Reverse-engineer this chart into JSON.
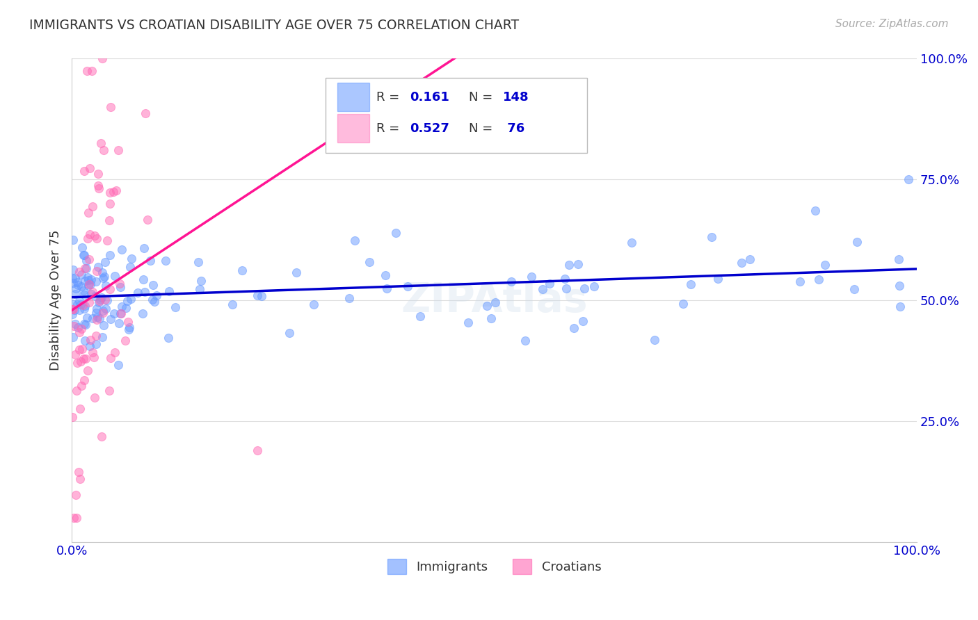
{
  "title": "IMMIGRANTS VS CROATIAN DISABILITY AGE OVER 75 CORRELATION CHART",
  "source": "Source: ZipAtlas.com",
  "ylabel": "Disability Age Over 75",
  "watermark": "ZIPAtlas",
  "legend_immigrants_R": "0.161",
  "legend_immigrants_N": "148",
  "legend_croatians_R": "0.527",
  "legend_croatians_N": "76",
  "immigrants_color": "#6699ff",
  "croatians_color": "#ff69b4",
  "trendline_immigrants_color": "#0000cd",
  "trendline_croatians_color": "#ff1493",
  "background_color": "#ffffff",
  "grid_color": "#dddddd",
  "title_color": "#333333",
  "axis_label_color": "#0000cd"
}
